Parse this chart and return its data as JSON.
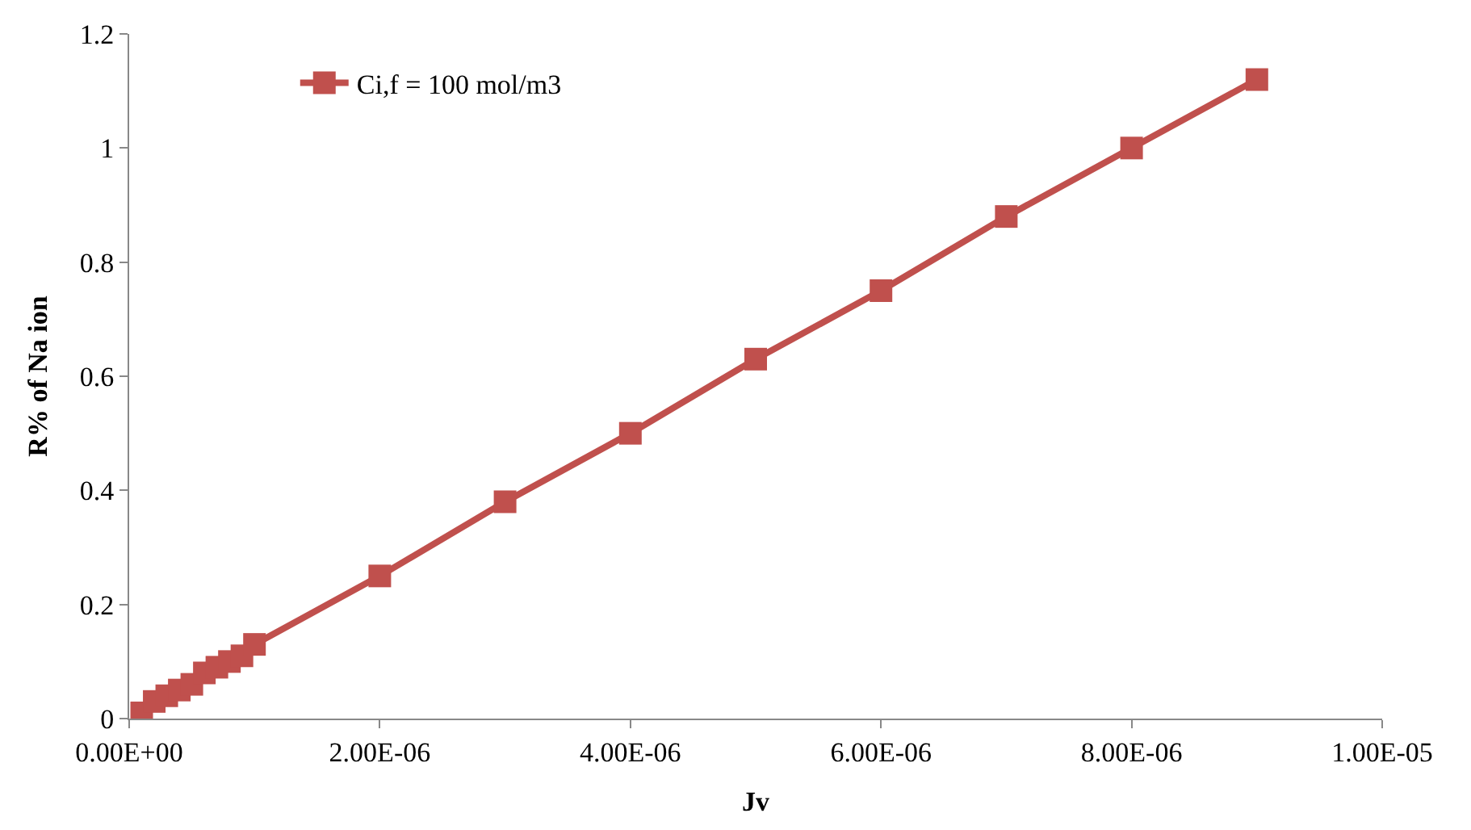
{
  "chart_data": {
    "type": "line",
    "xlabel": "Jv",
    "ylabel": "R% of Na ion",
    "x": [
      1e-07,
      2e-07,
      3e-07,
      4e-07,
      5e-07,
      6e-07,
      7e-07,
      8e-07,
      9e-07,
      1e-06,
      2e-06,
      3e-06,
      4e-06,
      5e-06,
      6e-06,
      7e-06,
      8e-06,
      9e-06
    ],
    "series": [
      {
        "name": "Ci,f = 100 mol/m3",
        "color": "#c0504d",
        "values": [
          0.01,
          0.03,
          0.04,
          0.05,
          0.06,
          0.08,
          0.09,
          0.1,
          0.11,
          0.13,
          0.25,
          0.38,
          0.5,
          0.63,
          0.75,
          0.88,
          1.0,
          1.12
        ]
      }
    ],
    "xlim": [
      0,
      1e-05
    ],
    "xticks": [
      {
        "value": 0,
        "label": "0.00E+00"
      },
      {
        "value": 2e-06,
        "label": "2.00E-06"
      },
      {
        "value": 4e-06,
        "label": "4.00E-06"
      },
      {
        "value": 6e-06,
        "label": "6.00E-06"
      },
      {
        "value": 8e-06,
        "label": "8.00E-06"
      },
      {
        "value": 1e-05,
        "label": "1.00E-05"
      }
    ],
    "ylim": [
      0,
      1.2
    ],
    "yticks": [
      0,
      0.2,
      0.4,
      0.6,
      0.8,
      1,
      1.2
    ],
    "legend": "top left",
    "marker": "square",
    "line_style": "solid"
  }
}
